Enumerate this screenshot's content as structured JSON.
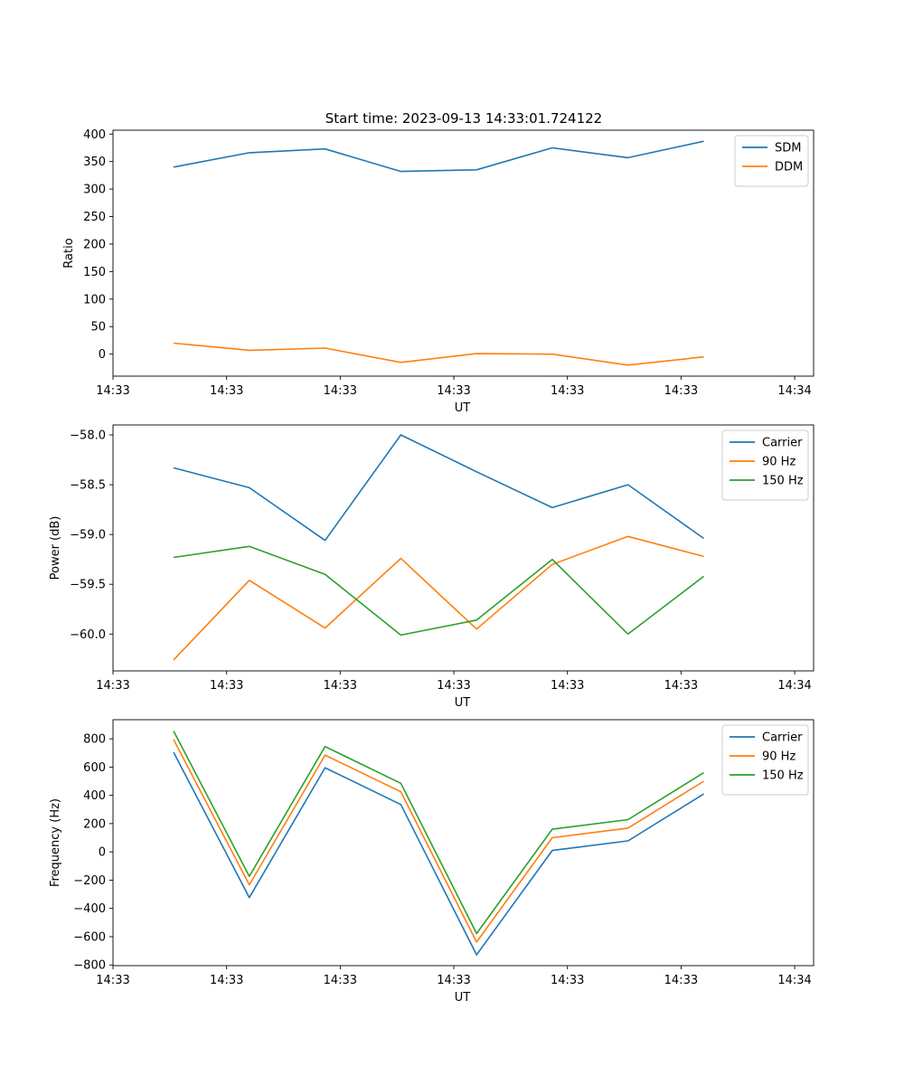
{
  "figure": {
    "title": "Start time: 2023-09-13 14:33:01.724122"
  },
  "chart_data": [
    {
      "type": "line",
      "title": "Start time: 2023-09-13 14:33:01.724122",
      "xlabel": "UT",
      "ylabel": "Ratio",
      "x": [
        1,
        2,
        3,
        4,
        5,
        6,
        7,
        8
      ],
      "xlim": [
        0.2,
        9.45
      ],
      "x_ticks": [
        0.2,
        1.7,
        3.2,
        4.7,
        6.2,
        7.7,
        9.2
      ],
      "x_tick_labels": [
        "14:33",
        "14:33",
        "14:33",
        "14:33",
        "14:33",
        "14:33",
        "14:34"
      ],
      "ylim": [
        -40,
        407
      ],
      "y_ticks": [
        0,
        50,
        100,
        150,
        200,
        250,
        300,
        350,
        400
      ],
      "series": [
        {
          "name": "SDM",
          "color": "#1f77b4",
          "values": [
            340,
            366,
            373,
            332,
            335,
            375,
            357,
            387
          ]
        },
        {
          "name": "DDM",
          "color": "#ff7f0e",
          "values": [
            20,
            7,
            11,
            -15,
            1,
            0,
            -20,
            -5
          ]
        }
      ],
      "legend": "top-right"
    },
    {
      "type": "line",
      "title": "",
      "xlabel": "UT",
      "ylabel": "Power (dB)",
      "x": [
        1,
        2,
        3,
        4,
        5,
        6,
        7,
        8
      ],
      "xlim": [
        0.2,
        9.45
      ],
      "x_ticks": [
        0.2,
        1.7,
        3.2,
        4.7,
        6.2,
        7.7,
        9.2
      ],
      "x_tick_labels": [
        "14:33",
        "14:33",
        "14:33",
        "14:33",
        "14:33",
        "14:33",
        "14:34"
      ],
      "ylim": [
        -60.37,
        -57.9
      ],
      "y_ticks": [
        -60.0,
        -59.5,
        -59.0,
        -58.5,
        -58.0
      ],
      "y_tick_labels": [
        "−60.0",
        "−59.5",
        "−59.0",
        "−58.5",
        "−58.0"
      ],
      "series": [
        {
          "name": "Carrier",
          "color": "#1f77b4",
          "values": [
            -58.33,
            -58.53,
            -59.06,
            -58.0,
            -58.37,
            -58.73,
            -58.5,
            -59.04
          ]
        },
        {
          "name": "90 Hz",
          "color": "#ff7f0e",
          "values": [
            -60.26,
            -59.46,
            -59.94,
            -59.24,
            -59.95,
            -59.3,
            -59.02,
            -59.22
          ]
        },
        {
          "name": "150 Hz",
          "color": "#2ca02c",
          "values": [
            -59.23,
            -59.12,
            -59.4,
            -60.01,
            -59.86,
            -59.25,
            -60.0,
            -59.42
          ]
        }
      ],
      "legend": "top-right"
    },
    {
      "type": "line",
      "title": "",
      "xlabel": "UT",
      "ylabel": "Frequency (Hz)",
      "x": [
        1,
        2,
        3,
        4,
        5,
        6,
        7,
        8
      ],
      "xlim": [
        0.2,
        9.45
      ],
      "x_ticks": [
        0.2,
        1.7,
        3.2,
        4.7,
        6.2,
        7.7,
        9.2
      ],
      "x_tick_labels": [
        "14:33",
        "14:33",
        "14:33",
        "14:33",
        "14:33",
        "14:33",
        "14:34"
      ],
      "ylim": [
        -805,
        935
      ],
      "y_ticks": [
        -800,
        -600,
        -400,
        -200,
        0,
        200,
        400,
        600,
        800
      ],
      "y_tick_labels": [
        "−800",
        "−600",
        "−400",
        "−200",
        "0",
        "200",
        "400",
        "600",
        "800"
      ],
      "series": [
        {
          "name": "Carrier",
          "color": "#1f77b4",
          "values": [
            705,
            -323,
            595,
            335,
            -728,
            10,
            78,
            410
          ]
        },
        {
          "name": "90 Hz",
          "color": "#ff7f0e",
          "values": [
            795,
            -233,
            685,
            425,
            -638,
            100,
            168,
            500
          ]
        },
        {
          "name": "150 Hz",
          "color": "#2ca02c",
          "values": [
            855,
            -173,
            745,
            485,
            -578,
            160,
            228,
            560
          ]
        }
      ],
      "legend": "top-right"
    }
  ]
}
